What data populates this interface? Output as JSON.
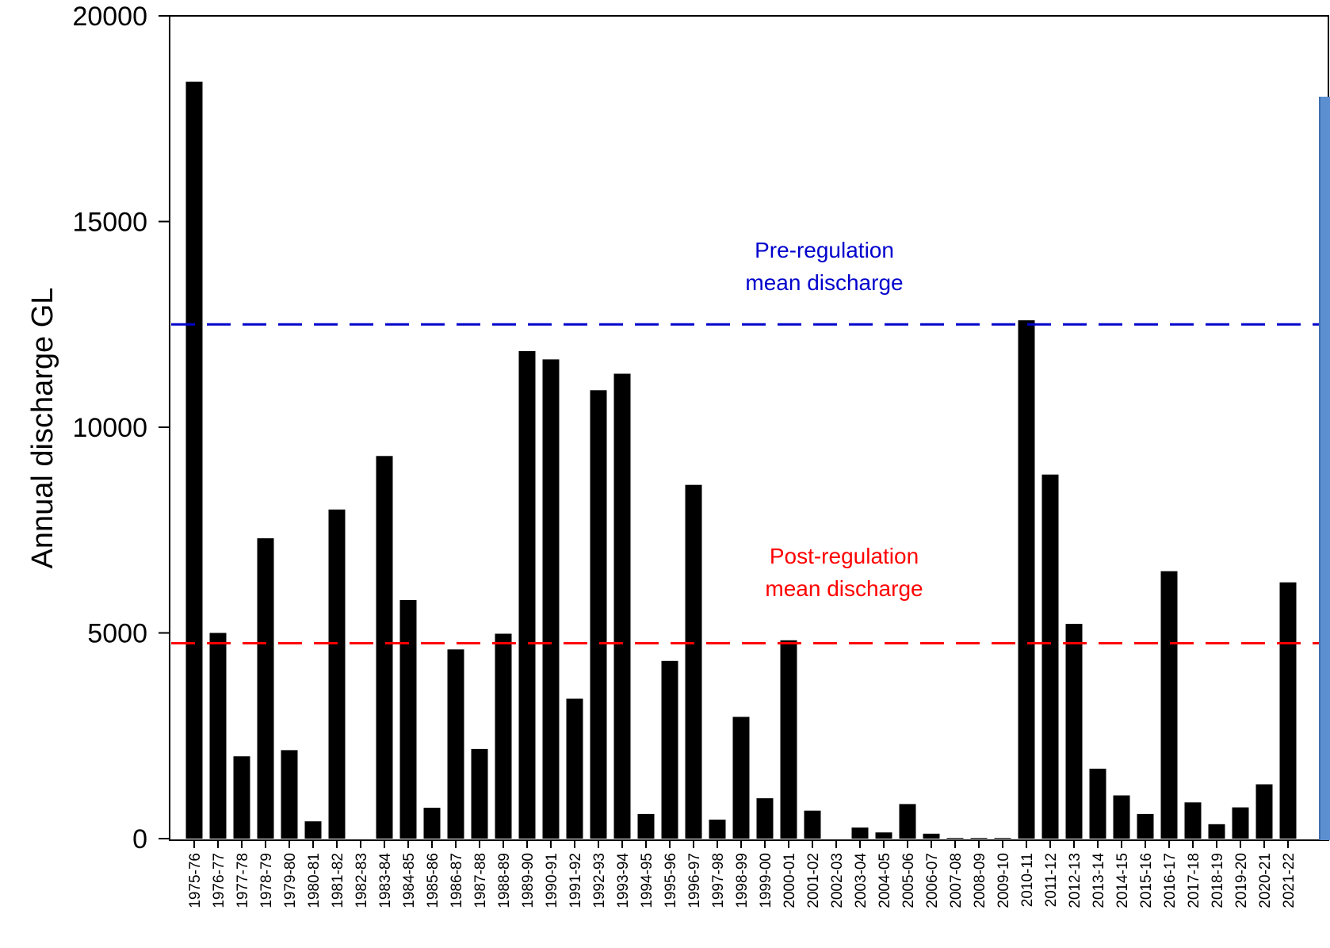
{
  "chart_data": {
    "type": "bar",
    "title": "",
    "xlabel": "",
    "ylabel": "Annual discharge GL",
    "ylim": [
      0,
      20000
    ],
    "yticks": [
      0,
      5000,
      10000,
      15000,
      20000
    ],
    "grid": false,
    "categories": [
      "1975-76",
      "1976-77",
      "1977-78",
      "1978-79",
      "1979-80",
      "1980-81",
      "1981-82",
      "1982-83",
      "1983-84",
      "1984-85",
      "1985-86",
      "1986-87",
      "1987-88",
      "1988-89",
      "1989-90",
      "1990-91",
      "1991-92",
      "1992-93",
      "1993-94",
      "1994-95",
      "1995-96",
      "1996-97",
      "1997-98",
      "1998-99",
      "1999-00",
      "2000-01",
      "2001-02",
      "2002-03",
      "2003-04",
      "2004-05",
      "2005-06",
      "2006-07",
      "2007-08",
      "2008-09",
      "2009-10",
      "2010-11",
      "2011-12",
      "2012-13",
      "2013-14",
      "2014-15",
      "2015-16",
      "2016-17",
      "2017-18",
      "2018-19",
      "2019-20",
      "2020-21",
      "2021-22"
    ],
    "values": [
      18400,
      5000,
      2000,
      7300,
      2150,
      420,
      8000,
      0,
      9300,
      5800,
      750,
      4600,
      2180,
      4980,
      11850,
      11650,
      3400,
      10900,
      11300,
      600,
      4320,
      8600,
      460,
      2960,
      980,
      4820,
      680,
      0,
      270,
      150,
      840,
      120,
      20,
      20,
      20,
      12600,
      8850,
      5220,
      1700,
      1050,
      600,
      6500,
      880,
      350,
      760,
      1320,
      6230
    ],
    "bar_color": "#000000",
    "reference_lines": [
      {
        "label_line1": "Pre-regulation",
        "label_line2": "mean discharge",
        "value": 12500,
        "color": "#0000cc",
        "style": "dashed"
      },
      {
        "label_line1": "Post-regulation",
        "label_line2": "mean discharge",
        "value": 4750,
        "color": "#ff0000",
        "style": "dashed"
      }
    ]
  }
}
